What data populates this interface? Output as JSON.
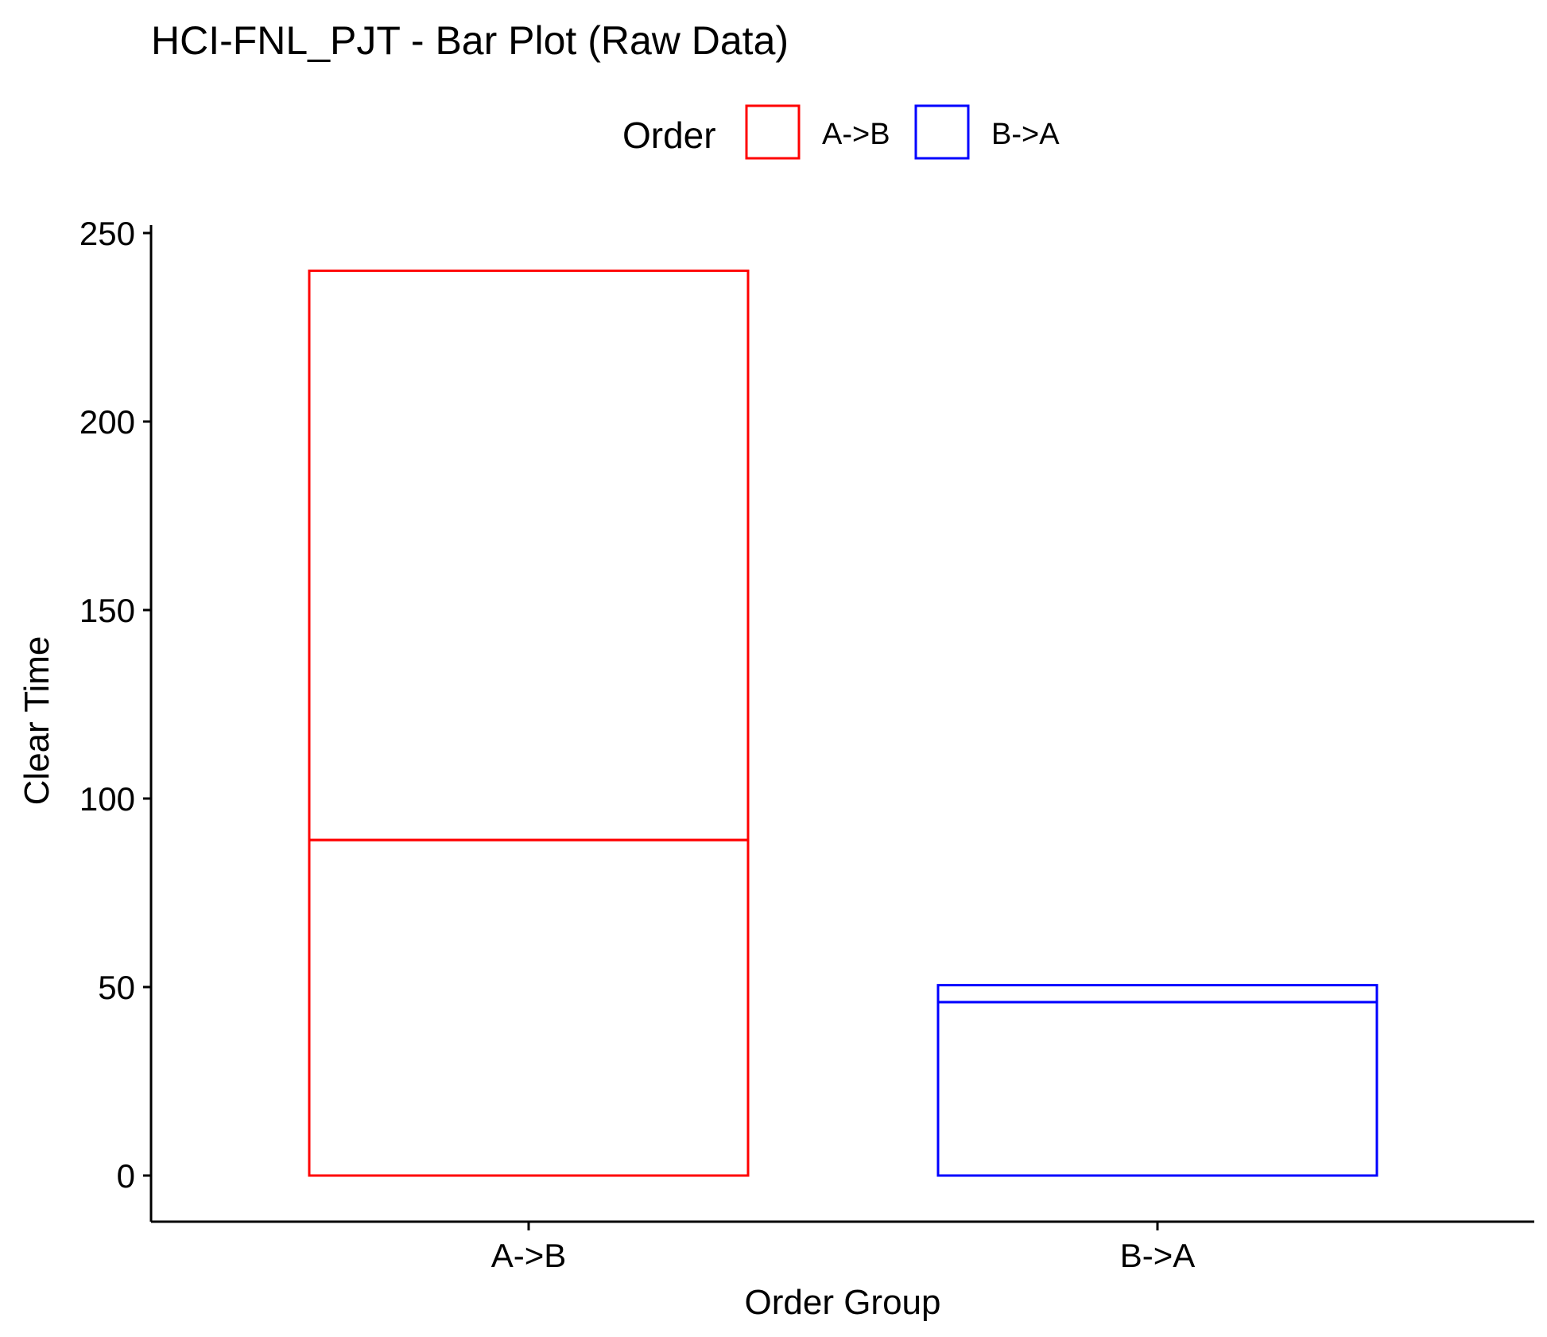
{
  "chart_data": {
    "type": "bar",
    "stacked": true,
    "title": "HCI-FNL_PJT - Bar Plot (Raw Data)",
    "xlabel": "Order Group",
    "ylabel": "Clear Time",
    "categories": [
      "A->B",
      "B->A"
    ],
    "y_ticks": [
      0,
      50,
      100,
      150,
      200,
      250
    ],
    "ylim": [
      -12,
      250
    ],
    "fill": "none",
    "legend": {
      "title": "Order",
      "position": "top",
      "entries": [
        {
          "label": "A->B",
          "color": "#ff0000"
        },
        {
          "label": "B->A",
          "color": "#0000ff"
        }
      ]
    },
    "bars": [
      {
        "category": "A->B",
        "color": "#ff0000",
        "segments": [
          89,
          151
        ],
        "total": 240
      },
      {
        "category": "B->A",
        "color": "#0000ff",
        "segments": [
          46,
          4.5
        ],
        "total": 50.5
      }
    ],
    "grid": false
  }
}
